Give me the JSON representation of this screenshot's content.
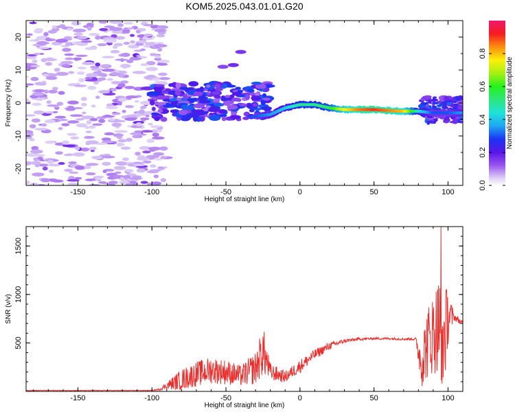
{
  "title": "KOM5.2025.043.01.01.G20",
  "chart_data": [
    {
      "type": "heatmap",
      "xlabel": "Height of straight line (km)",
      "ylabel": "Frequency (Hz)",
      "xlim": [
        -185,
        110
      ],
      "ylim": [
        -25,
        25
      ],
      "xticks": [
        -150,
        -100,
        -50,
        0,
        50,
        100
      ],
      "yticks": [
        -20,
        -10,
        0,
        10,
        20
      ],
      "colorbar": {
        "label": "Normalized spectral amplitude",
        "range": [
          0.0,
          1.0
        ],
        "ticks": [
          0.0,
          0.2,
          0.4,
          0.6,
          0.8
        ],
        "colormap": "rainbow (white-violet-blue-cyan-green-yellow-red-magenta)"
      },
      "ridge": {
        "description": "dominant frequency ridge",
        "x": [
          -30,
          -20,
          -10,
          0,
          10,
          20,
          30,
          40,
          50,
          60,
          70,
          80,
          90,
          100,
          110
        ],
        "y": [
          -4,
          -3.5,
          -1.5,
          -0.5,
          -0.5,
          -1.5,
          -2,
          -2,
          -2,
          -2.3,
          -2.5,
          -2.5,
          -3,
          -3,
          -3
        ],
        "amplitude": [
          0.3,
          0.35,
          0.4,
          0.5,
          0.5,
          0.55,
          0.75,
          0.85,
          0.9,
          0.85,
          0.8,
          0.45,
          0.3,
          0.3,
          0.35
        ]
      }
    },
    {
      "type": "line",
      "xlabel": "Height of straight line (km)",
      "ylabel": "SNR (v/v)",
      "xlim": [
        -185,
        110
      ],
      "ylim": [
        0,
        1700
      ],
      "xticks": [
        -150,
        -100,
        -50,
        0,
        50,
        100
      ],
      "yticks": [
        500,
        1000,
        1500
      ],
      "series_color": "#e8312f",
      "envelope": {
        "x": [
          -185,
          -100,
          -95,
          -90,
          -80,
          -70,
          -60,
          -50,
          -40,
          -30,
          -25,
          -20,
          -10,
          0,
          10,
          20,
          30,
          40,
          50,
          60,
          70,
          78,
          82,
          86,
          90,
          94,
          96,
          98,
          100,
          104,
          110
        ],
        "y": [
          10,
          10,
          20,
          60,
          120,
          180,
          220,
          200,
          160,
          240,
          420,
          200,
          150,
          260,
          380,
          470,
          520,
          540,
          545,
          545,
          540,
          540,
          300,
          500,
          600,
          700,
          500,
          600,
          780,
          770,
          700
        ],
        "noise": [
          3,
          3,
          10,
          40,
          110,
          130,
          140,
          130,
          110,
          170,
          260,
          90,
          60,
          70,
          55,
          40,
          20,
          15,
          12,
          12,
          12,
          15,
          260,
          380,
          420,
          520,
          600,
          480,
          300,
          40,
          25
        ]
      }
    }
  ]
}
